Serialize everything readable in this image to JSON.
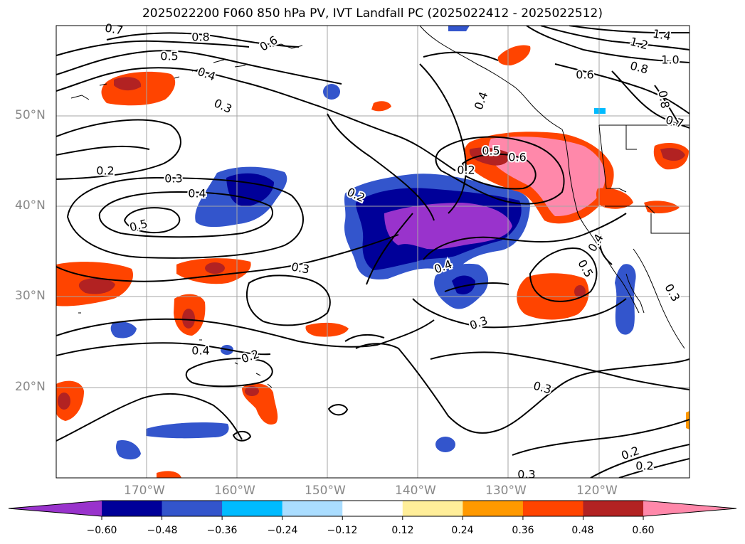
{
  "title": "2025022200 F060 850 hPa PV, IVT Landfall PC (2025022412 - 2025022512)",
  "lat_labels": [
    "50°N",
    "40°N",
    "30°N",
    "20°N"
  ],
  "lon_labels": [
    "170°W",
    "160°W",
    "150°W",
    "140°W",
    "130°W",
    "120°W"
  ],
  "contour_labels": [
    "0.8",
    "0.5",
    "0.6",
    "0.4",
    "0.3",
    "0.7",
    "1.4",
    "1.2",
    "1.0",
    "0.8",
    "0.6",
    "0.8",
    "0.7",
    "0.5",
    "0.6",
    "0.2",
    "0.3",
    "0.4",
    "0.5",
    "0.2",
    "0.3",
    "0.4",
    "0.3",
    "0.4",
    "0.5",
    "0.4",
    "0.3",
    "0.4",
    "0.2",
    "0.3",
    "0.2",
    "0.2",
    "0.3",
    "0.2"
  ],
  "colorbar": {
    "ticks": [
      "−0.60",
      "−0.48",
      "−0.36",
      "−0.24",
      "−0.12",
      "0.12",
      "0.24",
      "0.36",
      "0.48",
      "0.60"
    ],
    "colors": [
      "#9933cc",
      "#000099",
      "#3355cc",
      "#00bbff",
      "#aaddff",
      "#ffffff",
      "#ffee99",
      "#ff9900",
      "#ff4400",
      "#b22222",
      "#ff88aa"
    ]
  },
  "map_extent": {
    "lon": [
      -180,
      -110
    ],
    "lat": [
      10,
      60
    ]
  },
  "grid": true
}
